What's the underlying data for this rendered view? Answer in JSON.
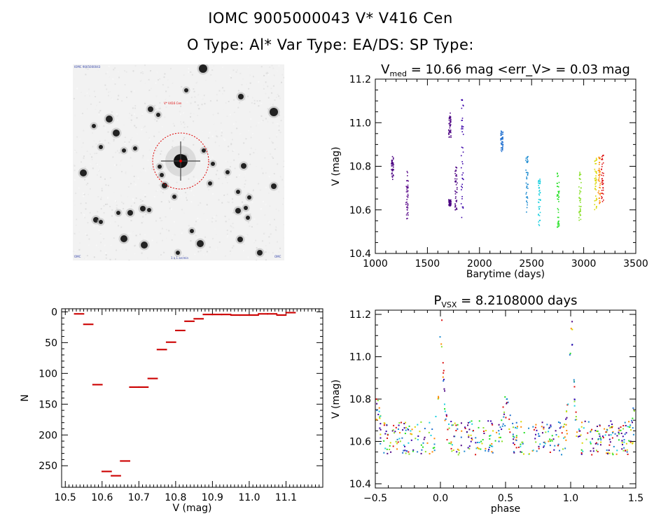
{
  "header": {
    "line1": "IOMC 9005000043    V* V416 Cen",
    "line2": "O Type: Al*  Var Type: EA/DS:  SP Type:"
  },
  "finder": {
    "marker_label": "V* V416 Cen",
    "corner_tl": "IOMC 9005000043",
    "corner_bl": "OMC",
    "corner_bc": "1 x 1 arcmin",
    "corner_br": "OMC"
  },
  "colors": {
    "histogram": "#cc0000",
    "axis": "#000000",
    "circle": "#dd0000"
  },
  "chart_data": [
    {
      "id": "lightcurve",
      "type": "scatter",
      "title_parts": [
        "V",
        "med",
        " = 10.66 mag <err_V> = 0.03 mag"
      ],
      "xlabel": "Barytime (days)",
      "ylabel": "V (mag)",
      "xlim": [
        1000,
        3500
      ],
      "ylim": [
        11.2,
        10.4
      ],
      "xticks": [
        1000,
        1500,
        2000,
        2500,
        3000,
        3500
      ],
      "xticklabels": [
        "1000",
        "1500",
        "2000",
        "2500",
        "3000",
        "3500"
      ],
      "yticks": [
        10.4,
        10.6,
        10.8,
        11.0,
        11.2
      ],
      "yticklabels": [
        "10.4",
        "10.6",
        "10.8",
        "11.0",
        "11.2"
      ],
      "color_by": "barytime (rainbow, purple to red)",
      "groups": [
        {
          "x": 1160,
          "y_range": [
            10.74,
            10.85
          ],
          "color": "#4b0082"
        },
        {
          "x": 1300,
          "y_range": [
            10.56,
            10.78
          ],
          "color": "#5a0a8a"
        },
        {
          "x": 1710,
          "y_range": [
            10.62,
            10.65
          ],
          "color": "#4b0082"
        },
        {
          "x": 1710,
          "y_range": [
            10.93,
            11.05
          ],
          "color": "#4b0082"
        },
        {
          "x": 1770,
          "y_range": [
            10.6,
            10.8
          ],
          "color": "#4b0082"
        },
        {
          "x": 1830,
          "y_range": [
            10.53,
            11.13
          ],
          "color": "#3a00a8"
        },
        {
          "x": 2210,
          "y_range": [
            10.87,
            10.97
          ],
          "color": "#1f6fd0"
        },
        {
          "x": 2450,
          "y_range": [
            10.59,
            10.85
          ],
          "color": "#1a8ad0"
        },
        {
          "x": 2570,
          "y_range": [
            10.53,
            10.75
          ],
          "color": "#1ad0e0"
        },
        {
          "x": 2750,
          "y_range": [
            10.52,
            10.8
          ],
          "color": "#22e022"
        },
        {
          "x": 2960,
          "y_range": [
            10.55,
            10.78
          ],
          "color": "#8ae02a"
        },
        {
          "x": 3110,
          "y_range": [
            10.6,
            10.84
          ],
          "color": "#d8d800"
        },
        {
          "x": 3145,
          "y_range": [
            10.63,
            10.86
          ],
          "color": "#ff8800"
        },
        {
          "x": 3175,
          "y_range": [
            10.64,
            10.86
          ],
          "color": "#dd1111"
        }
      ]
    },
    {
      "id": "histogram",
      "type": "bar",
      "xlabel": "V (mag)",
      "ylabel": "N",
      "xlim": [
        10.49,
        11.2
      ],
      "ylim": [
        -5,
        285
      ],
      "xticks": [
        10.5,
        10.6,
        10.7,
        10.8,
        10.9,
        11.0,
        11.1
      ],
      "xticklabels": [
        "10.5",
        "10.6",
        "10.7",
        "10.8",
        "10.9",
        "11.0",
        "11.1"
      ],
      "yticks": [
        0,
        50,
        100,
        150,
        200,
        250
      ],
      "yticklabels": [
        "0",
        "50",
        "100",
        "150",
        "200",
        "250"
      ],
      "bin_width": 0.025,
      "bin_start": 10.525,
      "values": [
        3,
        20,
        118,
        259,
        266,
        242,
        122,
        122,
        108,
        61,
        49,
        30,
        15,
        11,
        4,
        4,
        4,
        5,
        5,
        5,
        3,
        3,
        5,
        1
      ]
    },
    {
      "id": "phased",
      "type": "scatter",
      "title_parts": [
        "P",
        "VSX",
        " = 8.2108000 days"
      ],
      "xlabel": "phase",
      "ylabel": "V (mag)",
      "xlim": [
        -0.5,
        1.5
      ],
      "ylim": [
        11.22,
        10.38
      ],
      "xticks": [
        -0.5,
        0.0,
        0.5,
        1.0,
        1.5
      ],
      "xticklabels": [
        "−0.5",
        "0.0",
        "0.5",
        "1.0",
        "1.5"
      ],
      "yticks": [
        10.4,
        10.6,
        10.8,
        11.0,
        11.2
      ],
      "yticklabels": [
        "10.4",
        "10.6",
        "10.8",
        "11.0",
        "11.2"
      ],
      "period_days": 8.2108,
      "primary_eclipse": {
        "phase": 0.0,
        "min_mag": 11.13
      },
      "secondary_eclipse": {
        "phase": 0.5,
        "min_mag": 10.75
      },
      "baseline_mag": 10.62
    }
  ]
}
